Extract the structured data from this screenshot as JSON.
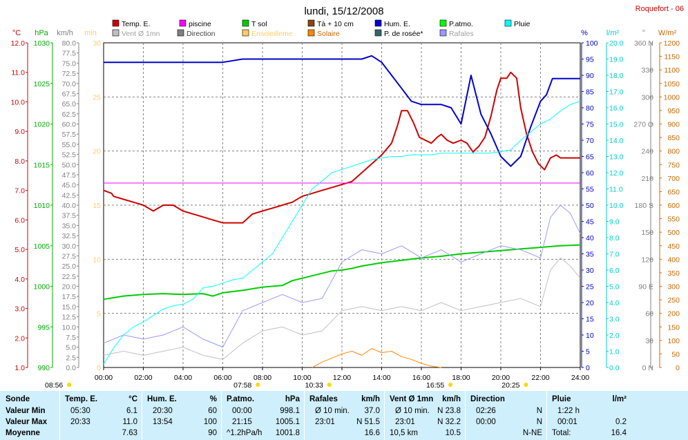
{
  "title": "lundi, 15/12/2008",
  "station": "Roquefort - 06",
  "legend": [
    {
      "label": "Temp. E.",
      "color": "#cc0000",
      "text_color": "#000000"
    },
    {
      "label": "piscine",
      "color": "#ff00ff",
      "text_color": "#000000"
    },
    {
      "label": "T sol",
      "color": "#00cc00",
      "text_color": "#000000"
    },
    {
      "label": "Tà + 10 cm",
      "color": "#8b4513",
      "text_color": "#000000"
    },
    {
      "label": "Hum. E.",
      "color": "#0000cc",
      "text_color": "#000000"
    },
    {
      "label": "P.atmo.",
      "color": "#00ff00",
      "text_color": "#000000"
    },
    {
      "label": "Pluie",
      "color": "#00ffff",
      "text_color": "#000000"
    },
    {
      "label": "Vent Ø 1mn",
      "color": "#c0c0c0",
      "text_color": "#a0a0a0"
    },
    {
      "label": "Direction",
      "color": "#808080",
      "text_color": "#404040"
    },
    {
      "label": "Ensoleilleme",
      "color": "#ffcc66",
      "text_color": "#ffcc66"
    },
    {
      "label": "Solaire",
      "color": "#ff8800",
      "text_color": "#cc6600"
    },
    {
      "label": "P. de rosée*",
      "color": "#336666",
      "text_color": "#000000"
    },
    {
      "label": "Rafales",
      "color": "#9999ff",
      "text_color": "#a0a0a0"
    }
  ],
  "axis_units": {
    "temp": "°C",
    "press": "hPa",
    "wind": "km/h",
    "sun_min": "min",
    "hum": "%",
    "rain": "l/m²",
    "dir": "°",
    "solar": "W/m²"
  },
  "colors": {
    "temp_axis": "#cc0000",
    "press_axis": "#00aa00",
    "wind_axis": "#808080",
    "sun_axis": "#ffcc66",
    "hum_axis": "#0000cc",
    "rain_axis": "#00cccc",
    "dir_axis": "#808080",
    "solar_axis": "#cc6600",
    "table_bg": "#cfeffc"
  },
  "chart_data": {
    "type": "line",
    "title": "lundi, 15/12/2008",
    "x_ticks": [
      "00:00",
      "02:00",
      "04:00",
      "06:00",
      "08:00",
      "10:00",
      "12:00",
      "14:00",
      "16:00",
      "18:00",
      "20:00",
      "22:00",
      "24:00"
    ],
    "y_axes": {
      "temp_c": {
        "range": [
          1,
          12
        ],
        "ticks": [
          "12.0",
          "11.0",
          "10.0",
          "9.0",
          "8.0",
          "7.0",
          "6.0",
          "5.0",
          "4.0",
          "3.0",
          "2.0",
          "1.0"
        ]
      },
      "pressure_hpa": {
        "range": [
          990,
          1030
        ],
        "ticks": [
          "1030",
          "1025",
          "1020",
          "1015",
          "1010",
          "1005",
          "1000",
          "995",
          "990"
        ]
      },
      "wind_kmh": {
        "range": [
          0,
          80
        ],
        "ticks": [
          "80.0",
          "77.5",
          "75.0",
          "72.5",
          "70.0",
          "67.5",
          "65.0",
          "62.5",
          "60.0",
          "57.5",
          "55.0",
          "52.5",
          "50.0",
          "47.5",
          "45.0",
          "42.5",
          "40.0",
          "37.5",
          "35.0",
          "32.5",
          "30.0",
          "27.5",
          "25.0",
          "22.5",
          "20.0",
          "17.5",
          "15.0",
          "12.5",
          "10.0",
          "7.5",
          "5.0",
          "2.5",
          "0.0"
        ]
      },
      "sun_min": {
        "range": [
          0,
          30
        ],
        "ticks": [
          "30",
          "25",
          "20",
          "15",
          "10",
          "5",
          "0"
        ]
      },
      "humidity_pct": {
        "range": [
          0,
          100
        ],
        "ticks": [
          "100",
          "95",
          "90",
          "85",
          "80",
          "75",
          "70",
          "65",
          "60",
          "55",
          "50",
          "45",
          "40",
          "35",
          "30",
          "25",
          "20",
          "15",
          "10",
          "5",
          "0"
        ]
      },
      "rain_lm2": {
        "range": [
          0,
          20
        ],
        "ticks": [
          "20.0",
          "19.0",
          "18.0",
          "17.0",
          "16.0",
          "15.0",
          "14.0",
          "13.0",
          "12.0",
          "11.0",
          "10.0",
          "9.0",
          "8.0",
          "7.0",
          "6.0",
          "5.0",
          "4.0",
          "3.0",
          "2.0",
          "1.0",
          "0.0"
        ]
      },
      "direction_deg": {
        "range": [
          0,
          360
        ],
        "ticks": [
          "360 N",
          "330",
          "300",
          "270 O",
          "240",
          "210",
          "180 S",
          "150",
          "120",
          "90 E",
          "60",
          "30",
          "0 N"
        ]
      },
      "solar_wm2": {
        "range": [
          0,
          1200
        ],
        "ticks": [
          "1200",
          "1150",
          "1100",
          "1050",
          "1000",
          "950",
          "900",
          "850",
          "800",
          "750",
          "700",
          "650",
          "600",
          "550",
          "500",
          "450",
          "400",
          "350",
          "300",
          "250",
          "200",
          "150",
          "100",
          "50",
          "0"
        ]
      }
    },
    "sun_events": [
      {
        "time": "08:56",
        "x_hours": -2.5,
        "row": 1
      },
      {
        "time": "07:58",
        "x_hours": 7.0,
        "row": 1
      },
      {
        "time": "10:33",
        "x_hours": 10.6,
        "row": 0
      },
      {
        "time": "16:55",
        "x_hours": 16.7,
        "row": 1
      },
      {
        "time": "20:25",
        "x_hours": 20.5,
        "row": 0
      }
    ],
    "series": [
      {
        "name": "Temp. E.",
        "axis": "temp_c",
        "color": "#cc0000",
        "width": 2,
        "x": [
          0,
          0.4,
          0.5,
          1,
          1.5,
          2,
          2.5,
          3,
          3.5,
          4,
          4.5,
          5,
          5.5,
          6,
          6.5,
          7,
          7.5,
          8,
          8.5,
          9,
          9.5,
          10,
          10.5,
          11,
          11.5,
          12,
          12.5,
          13,
          13.5,
          14,
          14.5,
          14.8,
          15,
          15.3,
          15.6,
          15.9,
          16.2,
          16.5,
          16.8,
          17,
          17.3,
          17.6,
          18,
          18.3,
          18.6,
          18.9,
          19.2,
          19.5,
          19.8,
          20,
          20.3,
          20.5,
          20.8,
          21,
          21.3,
          21.6,
          21.9,
          22.2,
          22.5,
          22.8,
          23,
          23.5,
          24
        ],
        "y": [
          7.0,
          6.9,
          6.8,
          6.7,
          6.6,
          6.5,
          6.3,
          6.5,
          6.5,
          6.3,
          6.2,
          6.1,
          6.0,
          5.9,
          5.9,
          5.9,
          6.2,
          6.3,
          6.4,
          6.5,
          6.6,
          6.8,
          6.9,
          7.0,
          7.1,
          7.2,
          7.3,
          7.6,
          7.9,
          8.2,
          8.6,
          9.2,
          9.7,
          9.7,
          9.3,
          8.8,
          8.7,
          8.6,
          8.8,
          8.9,
          8.7,
          8.6,
          8.7,
          8.6,
          8.3,
          8.5,
          8.8,
          9.5,
          10.4,
          10.8,
          10.8,
          11.0,
          10.8,
          9.8,
          8.9,
          8.3,
          7.9,
          7.7,
          8.1,
          8.2,
          8.1,
          8.1,
          8.1
        ]
      },
      {
        "name": "piscine",
        "axis": "temp_c",
        "color": "#ff00ff",
        "width": 1,
        "x": [
          0,
          24
        ],
        "y": [
          7.25,
          7.25
        ]
      },
      {
        "name": "P.atmo.",
        "axis": "pressure_hpa",
        "color": "#00cc00",
        "width": 2,
        "x": [
          0,
          1,
          2,
          3,
          4,
          5,
          5.5,
          6,
          7,
          8,
          9,
          9.5,
          10,
          10.5,
          11,
          11.5,
          12,
          12.5,
          13,
          14,
          15,
          16,
          17,
          18,
          19,
          20,
          21,
          22,
          23,
          24
        ],
        "y": [
          998.4,
          998.8,
          999.0,
          999.1,
          999.0,
          999.1,
          998.8,
          999.2,
          999.5,
          999.9,
          1000.1,
          1000.7,
          1001.0,
          1001.3,
          1001.6,
          1001.9,
          1002.0,
          1002.2,
          1002.5,
          1002.9,
          1003.2,
          1003.5,
          1003.7,
          1004.0,
          1004.2,
          1004.4,
          1004.6,
          1004.8,
          1005.0,
          1005.1
        ]
      },
      {
        "name": "Hum. E.",
        "axis": "humidity_pct",
        "color": "#0000cc",
        "width": 2,
        "x": [
          0,
          1,
          2,
          3,
          4,
          5,
          6,
          7,
          8,
          9,
          10,
          11,
          12,
          13,
          13.5,
          14,
          14.5,
          15,
          15.5,
          16,
          16.5,
          17,
          17.5,
          18,
          18.5,
          19,
          19.5,
          20,
          20.5,
          21,
          21.5,
          22,
          22.3,
          22.6,
          23,
          24
        ],
        "y": [
          94,
          94,
          94,
          94,
          94,
          94,
          94,
          95,
          95,
          95,
          95,
          95,
          95,
          95,
          96,
          94,
          90,
          86,
          82,
          81,
          81,
          81,
          80,
          75,
          90,
          78,
          72,
          65,
          62,
          65,
          74,
          82,
          84,
          89,
          89,
          89
        ]
      },
      {
        "name": "Pluie",
        "axis": "rain_lm2",
        "color": "#00ffff",
        "width": 1,
        "x": [
          0,
          0.5,
          1,
          1.5,
          2,
          2.5,
          3,
          3.5,
          4,
          4.5,
          5,
          5.5,
          6,
          6.5,
          7,
          7.5,
          8,
          8.5,
          9,
          9.5,
          10,
          10.5,
          11,
          11.5,
          12,
          12.5,
          13,
          13.5,
          14,
          14.5,
          15,
          15.5,
          16,
          16.5,
          17,
          17.5,
          18,
          18.5,
          19,
          19.5,
          20,
          20.5,
          21,
          21.5,
          22,
          22.5,
          23,
          23.5,
          24
        ],
        "y": [
          0.2,
          1.2,
          2.0,
          2.5,
          2.8,
          3.2,
          3.6,
          3.8,
          3.9,
          4.2,
          4.9,
          5.0,
          5.2,
          5.4,
          5.5,
          6.0,
          6.5,
          7.0,
          8.0,
          9.0,
          10.0,
          11.0,
          11.5,
          12.0,
          12.2,
          12.4,
          12.6,
          12.8,
          12.9,
          13.0,
          13.0,
          13.1,
          13.1,
          13.1,
          13.2,
          13.2,
          13.2,
          13.2,
          13.2,
          13.2,
          13.3,
          13.4,
          14.0,
          14.5,
          15.0,
          15.3,
          15.8,
          16.2,
          16.4
        ]
      },
      {
        "name": "Vent Ø 1mn",
        "axis": "wind_kmh",
        "color": "#c0c0c0",
        "width": 1,
        "x": [
          0,
          1,
          2,
          3,
          4,
          5,
          6,
          7,
          8,
          9,
          10,
          11,
          12,
          13,
          14,
          15,
          16,
          17,
          18,
          19,
          20,
          21,
          22,
          22.5,
          23,
          23.5,
          24
        ],
        "y": [
          3,
          4,
          3,
          4,
          5,
          3,
          2,
          6,
          9,
          10,
          8,
          9,
          14,
          15,
          14,
          15,
          14,
          16,
          14,
          15,
          16,
          17,
          15,
          24,
          27,
          25,
          22
        ]
      },
      {
        "name": "Rafales",
        "axis": "wind_kmh",
        "color": "#9999ff",
        "width": 1,
        "x": [
          0,
          1,
          2,
          3,
          4,
          5,
          6,
          7,
          8,
          9,
          10,
          11,
          12,
          13,
          14,
          15,
          16,
          17,
          18,
          19,
          20,
          21,
          22,
          22.5,
          23,
          23.5,
          24
        ],
        "y": [
          6,
          8,
          7,
          8,
          10,
          7,
          5,
          14,
          16,
          18,
          16,
          17,
          26,
          29,
          28,
          30,
          27,
          29,
          26,
          28,
          30,
          29,
          27,
          37,
          40,
          38,
          33
        ]
      },
      {
        "name": "Solaire",
        "axis": "solar_wm2",
        "color": "#ff8800",
        "width": 1,
        "x": [
          10.5,
          11,
          11.5,
          12,
          12.5,
          13,
          13.5,
          14,
          14.5,
          15,
          15.5,
          16,
          16.5,
          17
        ],
        "y": [
          0,
          20,
          35,
          50,
          60,
          45,
          70,
          55,
          60,
          40,
          30,
          15,
          5,
          0
        ]
      }
    ],
    "table": {
      "columns": [
        {
          "header": "Sonde",
          "unit": "",
          "min_time": "",
          "min_val": "",
          "max_time": "",
          "max_val": "",
          "avg_label": "",
          "avg": ""
        },
        {
          "header": "Temp. E.",
          "unit": "°C",
          "min_time": "05:30",
          "min_val": "6.1",
          "max_time": "20:33",
          "max_val": "11.0",
          "avg_label": "",
          "avg": "7.63"
        },
        {
          "header": "Hum. E.",
          "unit": "%",
          "min_time": "20:30",
          "min_val": "60",
          "max_time": "13:54",
          "max_val": "100",
          "avg_label": "",
          "avg": "90"
        },
        {
          "header": "P.atmo.",
          "unit": "hPa",
          "min_time": "00:00",
          "min_val": "998.1",
          "max_time": "21:15",
          "max_val": "1005.1",
          "avg_label": "^1.2hPa/h",
          "avg": "1001.8"
        },
        {
          "header": "Rafales",
          "unit": "km/h",
          "min_time": "Ø 10 min.",
          "min_val": "37.0",
          "max_time": "23:01",
          "max_val": "N 51.5",
          "avg_label": "",
          "avg": "16.6"
        },
        {
          "header": "Vent Ø 1mn",
          "unit": "km/h",
          "min_time": "Ø 10 min.",
          "min_val": "N 23.8",
          "max_time": "23:01",
          "max_val": "N 32.2",
          "avg_label": "10,5 km",
          "avg": "10.5"
        },
        {
          "header": "Direction",
          "unit": "",
          "min_time": "02:26",
          "min_val": "N",
          "max_time": "00:00",
          "max_val": "N",
          "avg_label": "",
          "avg": "N-NE"
        },
        {
          "header": "Pluie",
          "unit": "l/m²",
          "min_time": "1:22 h",
          "min_val": "",
          "max_time": "00:01",
          "max_val": "0.2",
          "avg_label": "Total:",
          "avg": "16.4"
        }
      ],
      "row_labels": [
        "Valeur Min",
        "Valeur Max",
        "Moyenne"
      ]
    }
  }
}
